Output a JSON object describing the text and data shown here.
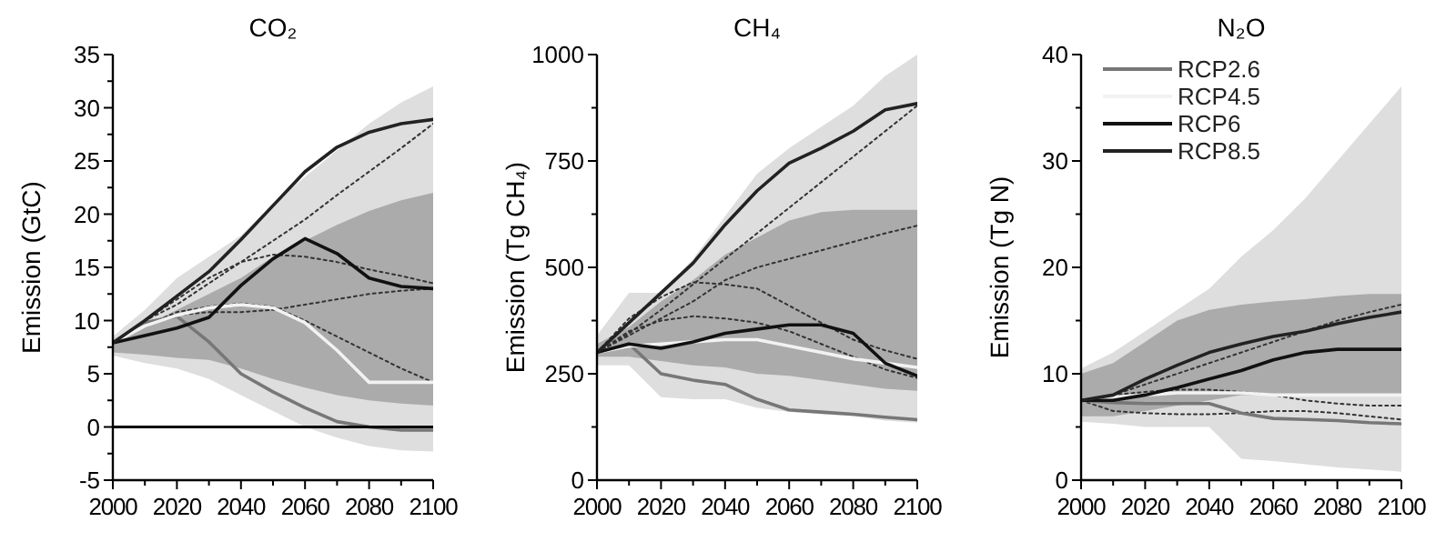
{
  "chart_data": [
    {
      "type": "line",
      "title": "CO₂",
      "ylabel": "Emission (GtC)",
      "x": [
        2000,
        2010,
        2020,
        2030,
        2040,
        2050,
        2060,
        2070,
        2080,
        2090,
        2100
      ],
      "xlim": [
        2000,
        2100
      ],
      "ylim": [
        -5,
        35
      ],
      "xticks": [
        2000,
        {
          "value": 2010,
          "label": null
        },
        2020,
        {
          "value": 2030,
          "label": null
        },
        2040,
        {
          "value": 2050,
          "label": null
        },
        2060,
        {
          "value": 2070,
          "label": null
        },
        2080,
        {
          "value": 2090,
          "label": null
        },
        2100
      ],
      "yticks": [
        -5,
        {
          "value": -2.5,
          "label": null
        },
        0,
        {
          "value": 2.5,
          "label": null
        },
        5,
        {
          "value": 7.5,
          "label": null
        },
        10,
        {
          "value": 12.5,
          "label": null
        },
        15,
        {
          "value": 17.5,
          "label": null
        },
        20,
        {
          "value": 22.5,
          "label": null
        },
        25,
        {
          "value": 27.5,
          "label": null
        },
        30,
        {
          "value": 32.5,
          "label": null
        },
        35
      ],
      "ref_lines": [
        {
          "axis": "y",
          "value": 0,
          "color": "#000000"
        }
      ],
      "series": [
        {
          "type": "area",
          "color": "#dedede",
          "values": [
            null,
            null,
            null,
            null,
            null,
            null,
            null,
            null,
            null,
            null,
            null
          ],
          "lower": [
            6.7,
            6,
            5.5,
            4.5,
            3,
            1.5,
            0,
            -1,
            -1.8,
            -2.2,
            -2.3
          ],
          "upper": [
            8.5,
            11,
            14,
            16,
            18,
            21,
            23.5,
            26,
            28.5,
            30.5,
            32
          ]
        },
        {
          "type": "area",
          "color": "#ababab",
          "values": [
            null,
            null,
            null,
            null,
            null,
            null,
            null,
            null,
            null,
            null,
            null
          ],
          "lower": [
            7,
            6.8,
            6.5,
            6.3,
            5.5,
            4.5,
            3.7,
            3,
            2.5,
            2.2,
            2
          ],
          "upper": [
            8,
            9.5,
            11,
            12.5,
            14,
            16,
            17.5,
            19,
            20.3,
            21.3,
            22
          ]
        },
        {
          "color": "#333333",
          "line_style": "dotted",
          "values": [
            7.9,
            10,
            11.5,
            13.5,
            15.5,
            17.5,
            19.5,
            21.8,
            24,
            26.2,
            28.5
          ]
        },
        {
          "color": "#333333",
          "line_style": "dotted",
          "values": [
            7.9,
            10,
            12,
            14,
            15.5,
            16.2,
            16,
            15.5,
            14.8,
            14.2,
            13.5
          ]
        },
        {
          "color": "#333333",
          "line_style": "dotted",
          "values": [
            7.9,
            9.5,
            10.5,
            10.8,
            10.8,
            11,
            11.5,
            12,
            12.5,
            12.8,
            13
          ]
        },
        {
          "color": "#333333",
          "line_style": "dotted",
          "values": [
            7.9,
            9.5,
            10.8,
            11.3,
            11.6,
            11.3,
            10,
            8.5,
            7,
            5.5,
            4.2
          ]
        },
        {
          "color": "#777777",
          "values": [
            7.9,
            9.8,
            10.4,
            8,
            5,
            3.3,
            1.8,
            0.5,
            0,
            -0.3,
            -0.3
          ]
        },
        {
          "color": "#f2f2f2",
          "values": [
            7.9,
            9.5,
            10.5,
            11.2,
            11.5,
            11.2,
            9.8,
            7.2,
            4.2,
            4.2,
            4.2
          ]
        },
        {
          "color": "#111111",
          "values": [
            7.9,
            8.6,
            9.3,
            10.3,
            13.3,
            15.8,
            17.7,
            16.3,
            14,
            13.2,
            13
          ]
        },
        {
          "color": "#222222",
          "values": [
            7.9,
            10,
            12.3,
            14.6,
            17.6,
            20.8,
            24,
            26.3,
            27.7,
            28.5,
            28.9
          ]
        }
      ]
    },
    {
      "type": "line",
      "title": "CH₄",
      "ylabel": "Emission (Tg CH₄)",
      "x": [
        2000,
        2010,
        2020,
        2030,
        2040,
        2050,
        2060,
        2070,
        2080,
        2090,
        2100
      ],
      "xlim": [
        2000,
        2100
      ],
      "ylim": [
        0,
        1000
      ],
      "xticks": [
        2000,
        {
          "value": 2010,
          "label": null
        },
        2020,
        {
          "value": 2030,
          "label": null
        },
        2040,
        {
          "value": 2050,
          "label": null
        },
        2060,
        {
          "value": 2070,
          "label": null
        },
        2080,
        {
          "value": 2090,
          "label": null
        },
        2100
      ],
      "yticks": [
        0,
        {
          "value": 125,
          "label": null
        },
        250,
        {
          "value": 375,
          "label": null
        },
        500,
        {
          "value": 625,
          "label": null
        },
        750,
        {
          "value": 875,
          "label": null
        },
        1000
      ],
      "series": [
        {
          "type": "area",
          "color": "#dedede",
          "values": [
            null,
            null,
            null,
            null,
            null,
            null,
            null,
            null,
            null,
            null,
            null
          ],
          "lower": [
            270,
            270,
            195,
            190,
            190,
            170,
            160,
            155,
            150,
            140,
            135
          ],
          "upper": [
            340,
            440,
            440,
            520,
            620,
            720,
            780,
            830,
            880,
            950,
            1000
          ]
        },
        {
          "type": "area",
          "color": "#ababab",
          "values": [
            null,
            null,
            null,
            null,
            null,
            null,
            null,
            null,
            null,
            null,
            null
          ],
          "lower": [
            290,
            290,
            280,
            270,
            265,
            250,
            245,
            235,
            225,
            215,
            210
          ],
          "upper": [
            320,
            360,
            420,
            470,
            530,
            570,
            610,
            630,
            635,
            635,
            635
          ]
        },
        {
          "color": "#333333",
          "line_style": "dotted",
          "values": [
            300,
            345,
            400,
            460,
            520,
            580,
            640,
            700,
            760,
            820,
            880
          ]
        },
        {
          "color": "#333333",
          "line_style": "dotted",
          "values": [
            300,
            340,
            380,
            420,
            470,
            500,
            520,
            540,
            560,
            580,
            598
          ]
        },
        {
          "color": "#333333",
          "line_style": "dotted",
          "values": [
            300,
            380,
            430,
            465,
            460,
            450,
            410,
            370,
            330,
            305,
            285
          ]
        },
        {
          "color": "#333333",
          "line_style": "dotted",
          "values": [
            300,
            350,
            375,
            385,
            380,
            370,
            350,
            320,
            290,
            260,
            240
          ]
        },
        {
          "color": "#777777",
          "values": [
            300,
            320,
            250,
            235,
            225,
            190,
            165,
            160,
            155,
            148,
            142
          ]
        },
        {
          "color": "#f2f2f2",
          "values": [
            300,
            315,
            320,
            325,
            330,
            330,
            315,
            300,
            285,
            275,
            265
          ]
        },
        {
          "color": "#111111",
          "values": [
            300,
            320,
            310,
            325,
            345,
            355,
            365,
            365,
            345,
            275,
            245
          ]
        },
        {
          "color": "#222222",
          "values": [
            300,
            370,
            440,
            510,
            600,
            680,
            745,
            780,
            820,
            870,
            885
          ]
        }
      ]
    },
    {
      "type": "line",
      "title": "N₂O",
      "ylabel": "Emission (Tg N)",
      "x": [
        2000,
        2010,
        2020,
        2030,
        2040,
        2050,
        2060,
        2070,
        2080,
        2090,
        2100
      ],
      "xlim": [
        2000,
        2100
      ],
      "ylim": [
        0,
        40
      ],
      "legend": "top left",
      "xticks": [
        2000,
        {
          "value": 2010,
          "label": null
        },
        2020,
        {
          "value": 2030,
          "label": null
        },
        2040,
        {
          "value": 2050,
          "label": null
        },
        2060,
        {
          "value": 2070,
          "label": null
        },
        2080,
        {
          "value": 2090,
          "label": null
        },
        2100
      ],
      "yticks": [
        0,
        {
          "value": 5,
          "label": null
        },
        10,
        {
          "value": 15,
          "label": null
        },
        20,
        {
          "value": 25,
          "label": null
        },
        30,
        {
          "value": 35,
          "label": null
        },
        40
      ],
      "series": [
        {
          "type": "area",
          "color": "#dedede",
          "values": [
            null,
            null,
            null,
            null,
            null,
            null,
            null,
            null,
            null,
            null,
            null
          ],
          "lower": [
            5.5,
            5.3,
            5,
            5,
            5,
            2,
            1.8,
            1.5,
            1.2,
            1,
            0.8
          ],
          "upper": [
            10.5,
            12,
            14,
            16,
            18,
            21,
            23.5,
            26.5,
            30,
            33.5,
            37
          ]
        },
        {
          "type": "area",
          "color": "#ababab",
          "values": [
            null,
            null,
            null,
            null,
            null,
            null,
            null,
            null,
            null,
            null,
            null
          ],
          "lower": [
            6,
            6,
            6.5,
            7,
            7.5,
            8,
            8,
            8,
            8,
            8,
            8
          ],
          "upper": [
            10,
            11,
            13,
            15,
            16,
            16.5,
            16.8,
            17,
            17.3,
            17.5,
            17.5
          ]
        },
        {
          "color": "#333333",
          "line_style": "dotted",
          "values": [
            7.5,
            8,
            9,
            10,
            11,
            12,
            13,
            14,
            15,
            15.8,
            16.5
          ]
        },
        {
          "color": "#333333",
          "line_style": "dotted",
          "values": [
            7.5,
            8,
            8.3,
            8.5,
            8.5,
            8.3,
            8,
            7.5,
            7.2,
            7,
            7
          ]
        },
        {
          "color": "#333333",
          "line_style": "dotted",
          "values": [
            7.5,
            6.5,
            6.3,
            6.2,
            6.2,
            6.3,
            6.5,
            6.5,
            6.3,
            6,
            5.7
          ]
        },
        {
          "name": "RCP2.6",
          "color": "#777777",
          "values": [
            7.5,
            7.3,
            7.2,
            7.2,
            7.2,
            6.3,
            5.8,
            5.7,
            5.6,
            5.4,
            5.3
          ]
        },
        {
          "name": "RCP4.5",
          "color": "#f2f2f2",
          "values": [
            7.5,
            7.8,
            8,
            8.2,
            8.2,
            8.2,
            8,
            8,
            8,
            8,
            8
          ]
        },
        {
          "name": "RCP6",
          "color": "#111111",
          "values": [
            7.5,
            7.5,
            8,
            8.7,
            9.5,
            10.3,
            11.3,
            12,
            12.3,
            12.3,
            12.3
          ]
        },
        {
          "name": "RCP8.5",
          "color": "#222222",
          "values": [
            7.5,
            8,
            9.5,
            10.8,
            12,
            12.8,
            13.5,
            14,
            14.7,
            15.3,
            15.8
          ]
        }
      ]
    }
  ]
}
